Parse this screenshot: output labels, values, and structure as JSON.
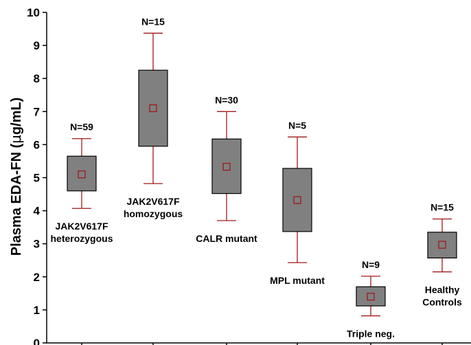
{
  "chart_data": {
    "type": "boxplot",
    "ylabel_main": "Plasma EDA-FN (",
    "ylabel_mu": "μ",
    "ylabel_unit": "g/mL)",
    "ylim": [
      0,
      10
    ],
    "yticks": [
      0,
      1,
      2,
      3,
      4,
      5,
      6,
      7,
      8,
      9,
      10
    ],
    "grid": false,
    "colors": {
      "box": "#808080",
      "whisker": "#a01818",
      "median": "#a01818",
      "axis": "#000000"
    },
    "categories": [
      {
        "label_lines": [
          "JAK2V617F",
          "heterozygous"
        ],
        "label_position": "below",
        "n": "N=59",
        "min": 4.07,
        "q1": 4.6,
        "median": 5.1,
        "q3": 5.65,
        "max": 6.18
      },
      {
        "label_lines": [
          "JAK2V617F",
          "homozygous"
        ],
        "label_position": "below",
        "n": "N=15",
        "min": 4.82,
        "q1": 5.95,
        "median": 7.1,
        "q3": 8.25,
        "max": 9.37
      },
      {
        "label_lines": [
          "CALR mutant"
        ],
        "label_position": "below",
        "n": "N=30",
        "min": 3.7,
        "q1": 4.52,
        "median": 5.33,
        "q3": 6.17,
        "max": 7.0
      },
      {
        "label_lines": [
          "MPL mutant"
        ],
        "label_position": "below",
        "n": "N=5",
        "min": 2.43,
        "q1": 3.37,
        "median": 4.32,
        "q3": 5.28,
        "max": 6.23
      },
      {
        "label_lines": [
          "Triple neg."
        ],
        "label_position": "below",
        "n": "N=9",
        "min": 0.82,
        "q1": 1.12,
        "median": 1.4,
        "q3": 1.7,
        "max": 2.02
      },
      {
        "label_lines": [
          "Healthy",
          "Controls"
        ],
        "label_position": "below",
        "n": "N=15",
        "min": 2.15,
        "q1": 2.57,
        "median": 2.97,
        "q3": 3.35,
        "max": 3.75
      }
    ]
  }
}
